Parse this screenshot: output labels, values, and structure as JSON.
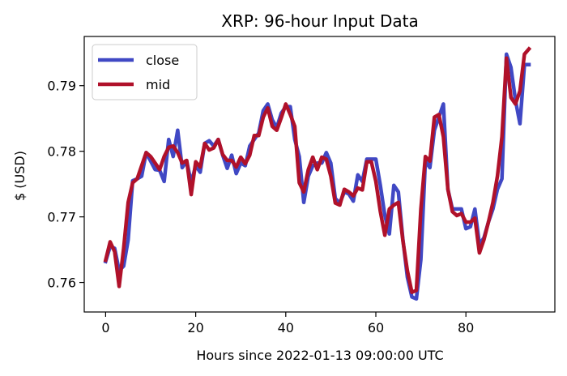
{
  "chart_data": {
    "type": "line",
    "title": "XRP: 96-hour Input Data",
    "xlabel": "Hours since 2022-01-13 09:00:00 UTC",
    "ylabel": "$ (USD)",
    "xlim": [
      -4.75,
      99.75
    ],
    "ylim": [
      0.7555,
      0.7975
    ],
    "xticks": [
      0,
      20,
      40,
      60,
      80
    ],
    "yticks": [
      0.76,
      0.77,
      0.78,
      0.79
    ],
    "ytick_labels": [
      "0.76",
      "0.77",
      "0.78",
      "0.79"
    ],
    "grid": false,
    "legend_position": "upper-left",
    "series": [
      {
        "name": "close",
        "color": "#4048c4",
        "values": [
          0.7632,
          0.7655,
          0.7652,
          0.7618,
          0.7625,
          0.7665,
          0.7755,
          0.7758,
          0.7762,
          0.7798,
          0.7785,
          0.7772,
          0.7771,
          0.7754,
          0.7818,
          0.7792,
          0.7832,
          0.7775,
          0.7785,
          0.7752,
          0.7778,
          0.7768,
          0.7812,
          0.7816,
          0.7808,
          0.7818,
          0.7794,
          0.7774,
          0.7794,
          0.7766,
          0.7782,
          0.7778,
          0.7808,
          0.7818,
          0.7828,
          0.7862,
          0.7872,
          0.7848,
          0.7836,
          0.7858,
          0.7868,
          0.7868,
          0.7818,
          0.7792,
          0.7722,
          0.7762,
          0.7778,
          0.7782,
          0.7782,
          0.7798,
          0.7782,
          0.7728,
          0.7721,
          0.7738,
          0.7735,
          0.7724,
          0.7764,
          0.7754,
          0.7788,
          0.7788,
          0.7788,
          0.7748,
          0.7702,
          0.7674,
          0.7748,
          0.7738,
          0.7666,
          0.7608,
          0.7578,
          0.7575,
          0.7635,
          0.7785,
          0.7775,
          0.7832,
          0.7852,
          0.7872,
          0.7742,
          0.7712,
          0.7712,
          0.7712,
          0.7682,
          0.7685,
          0.7712,
          0.7658,
          0.7668,
          0.7692,
          0.7712,
          0.7742,
          0.7758,
          0.7948,
          0.7928,
          0.7878,
          0.7842,
          0.7932,
          0.7932
        ],
        "title": ""
      },
      {
        "name": "mid",
        "color": "#b0112a",
        "values": [
          0.7634,
          0.7662,
          0.7647,
          0.7594,
          0.7652,
          0.7722,
          0.7752,
          0.7758,
          0.7778,
          0.7798,
          0.7792,
          0.7782,
          0.7772,
          0.7792,
          0.7806,
          0.7808,
          0.7798,
          0.7782,
          0.7786,
          0.7734,
          0.7784,
          0.7776,
          0.7812,
          0.7802,
          0.7805,
          0.7818,
          0.7795,
          0.7786,
          0.7786,
          0.7776,
          0.7791,
          0.7781,
          0.7794,
          0.7824,
          0.7824,
          0.7852,
          0.7866,
          0.7838,
          0.7832,
          0.7851,
          0.7872,
          0.7856,
          0.7838,
          0.7752,
          0.7738,
          0.7772,
          0.7791,
          0.7772,
          0.7791,
          0.7788,
          0.7762,
          0.7721,
          0.7718,
          0.7742,
          0.7738,
          0.7732,
          0.7744,
          0.7741,
          0.7784,
          0.7784,
          0.7754,
          0.7708,
          0.7672,
          0.7712,
          0.7718,
          0.7722,
          0.7664,
          0.7618,
          0.7585,
          0.7588,
          0.7712,
          0.7792,
          0.7785,
          0.7852,
          0.7856,
          0.7822,
          0.7742,
          0.7708,
          0.7702,
          0.7705,
          0.7692,
          0.7692,
          0.7698,
          0.7645,
          0.7665,
          0.7692,
          0.7722,
          0.7762,
          0.7822,
          0.7942,
          0.7882,
          0.7872,
          0.7892,
          0.7948,
          0.7956
        ]
      }
    ]
  }
}
